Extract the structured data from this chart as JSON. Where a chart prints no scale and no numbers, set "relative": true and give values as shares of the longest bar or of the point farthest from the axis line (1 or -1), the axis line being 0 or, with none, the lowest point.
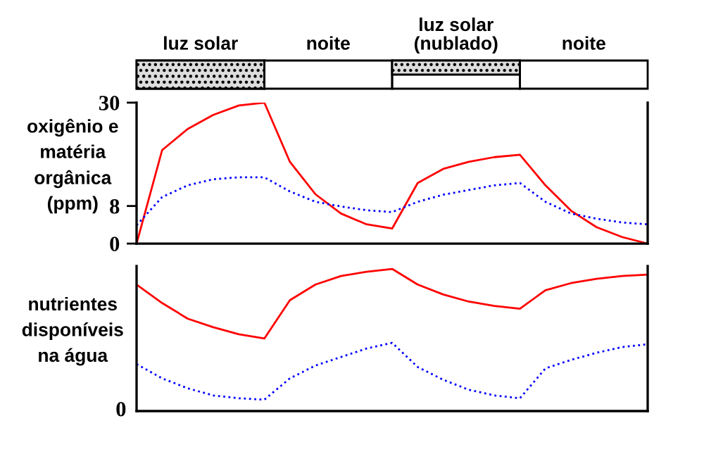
{
  "chart_data": [
    {
      "type": "line",
      "ylabel": "oxigênio e\nmatéria\norgânica\n(ppm)",
      "annotations": [
        "luz solar",
        "noite",
        "luz solar\n(nublado)",
        "noite"
      ],
      "categories": [
        null,
        null,
        null,
        null,
        null,
        null,
        null,
        null,
        null,
        null,
        null,
        null,
        null,
        null,
        null,
        null,
        null,
        null,
        null,
        null,
        null
      ],
      "ylim": [
        0,
        30
      ],
      "yticks": [
        0,
        8,
        30
      ],
      "series": [
        {
          "color": "#ff0000",
          "line_style": "solid",
          "values": [
            0,
            19.9,
            24.4,
            27.4,
            29.4,
            30,
            17.4,
            10.5,
            6.4,
            4.1,
            3.2,
            12.9,
            15.9,
            17.4,
            18.4,
            18.9,
            12.4,
            7,
            3.5,
            1.4,
            0
          ]
        },
        {
          "color": "#0000ff",
          "line_style": "dotted",
          "values": [
            3.9,
            9.9,
            12.4,
            13.7,
            14.1,
            14.1,
            11.1,
            8.9,
            7.9,
            7.1,
            6.7,
            8.9,
            10.4,
            11.4,
            12.4,
            12.9,
            8.9,
            6.4,
            5.3,
            4.5,
            4.1
          ]
        }
      ]
    },
    {
      "type": "line",
      "ylabel": "nutrientes\ndisponíveis\nna água",
      "annotations": [
        "0"
      ],
      "relative": true,
      "categories": [
        null,
        null,
        null,
        null,
        null,
        null,
        null,
        null,
        null,
        null,
        null,
        null,
        null,
        null,
        null,
        null,
        null,
        null,
        null,
        null,
        null
      ],
      "series": [
        {
          "color": "#ff0000",
          "line_style": "solid",
          "values": [
            0.89,
            0.76,
            0.65,
            0.59,
            0.54,
            0.51,
            0.78,
            0.89,
            0.95,
            0.98,
            1,
            0.89,
            0.82,
            0.77,
            0.74,
            0.72,
            0.85,
            0.9,
            0.93,
            0.95,
            0.96
          ]
        },
        {
          "color": "#0000ff",
          "line_style": "dotted",
          "values": [
            0.33,
            0.23,
            0.16,
            0.11,
            0.09,
            0.08,
            0.23,
            0.32,
            0.38,
            0.44,
            0.48,
            0.31,
            0.22,
            0.15,
            0.11,
            0.09,
            0.3,
            0.36,
            0.41,
            0.45,
            0.47
          ]
        }
      ]
    }
  ]
}
